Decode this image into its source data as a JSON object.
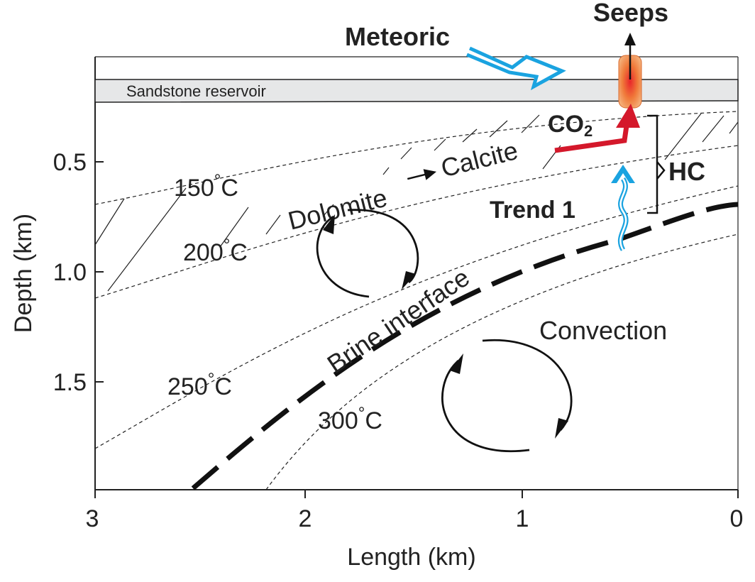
{
  "axes": {
    "y_label": "Depth (km)",
    "x_label": "Length (km)",
    "y_ticks": [
      "0.5",
      "1.0",
      "1.5"
    ],
    "x_ticks": [
      "3",
      "2",
      "1",
      "0"
    ]
  },
  "labels": {
    "sandstone": "Sandstone reservoir",
    "meteoric": "Meteoric",
    "seeps": "Seeps",
    "co2": "CO",
    "co2_sub": "2",
    "hc": "HC",
    "trend": "Trend 1",
    "dolomite": "Dolomite",
    "calcite": "Calcite",
    "brine": "Brine interface",
    "convection": "Convection",
    "iso150": "150",
    "iso200": "200",
    "iso250": "250",
    "iso300": "300",
    "deg": "°",
    "unit_c": "C"
  },
  "colors": {
    "meteoric_arrow": "#1aa3e0",
    "co2_arrow": "#d4182b",
    "seep_fill": "#e8542a",
    "sandstone_fill": "#e6e7e8"
  }
}
